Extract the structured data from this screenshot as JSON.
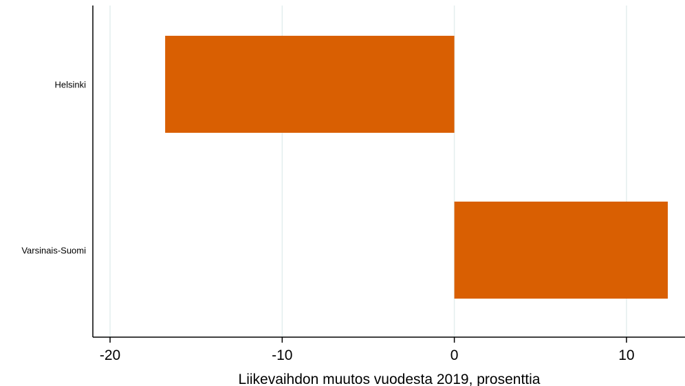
{
  "chart_data": {
    "type": "bar",
    "orientation": "horizontal",
    "categories": [
      "Helsinki",
      "Varsinais-Suomi"
    ],
    "values": [
      -16.8,
      12.4
    ],
    "xlabel": "Liikevaihdon muutos vuodesta 2019, prosenttia",
    "ylabel": "",
    "xlim": [
      -21,
      13.4
    ],
    "xticks": [
      -20,
      -10,
      0,
      10
    ],
    "xtick_labels": [
      "-20",
      "-10",
      "0",
      "10"
    ],
    "grid": "vertical",
    "legend": "none",
    "colors": {
      "bar": "#D95F02",
      "grid": "#E3EEEE",
      "axis": "#000000"
    }
  }
}
